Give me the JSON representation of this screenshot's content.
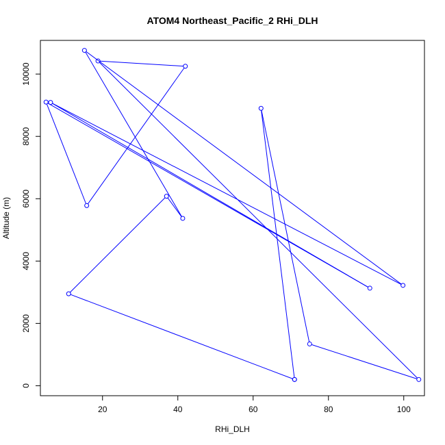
{
  "chart_data": {
    "type": "line",
    "title": "ATOM4 Northeast_Pacific_2 RHi_DLH",
    "xlabel": "RHi_DLH",
    "ylabel": "Altitude (m)",
    "xlim": [
      3.5,
      105.5
    ],
    "ylim": [
      -320,
      11080
    ],
    "xticks": [
      20,
      40,
      60,
      80,
      100
    ],
    "yticks": [
      0,
      2000,
      4000,
      6000,
      8000,
      10000
    ],
    "grid": false,
    "color": "#0000ff",
    "series": [
      {
        "x": [
          71,
          11,
          37,
          41.3,
          15.2,
          99.8,
          6.2,
          91,
          5,
          15.8,
          42,
          18.8,
          104,
          75,
          62.1,
          71
        ],
        "y": [
          200,
          2950,
          6080,
          5370,
          10760,
          3220,
          9090,
          3130,
          9100,
          5780,
          10250,
          10420,
          200,
          1340,
          8900,
          200
        ]
      }
    ]
  }
}
